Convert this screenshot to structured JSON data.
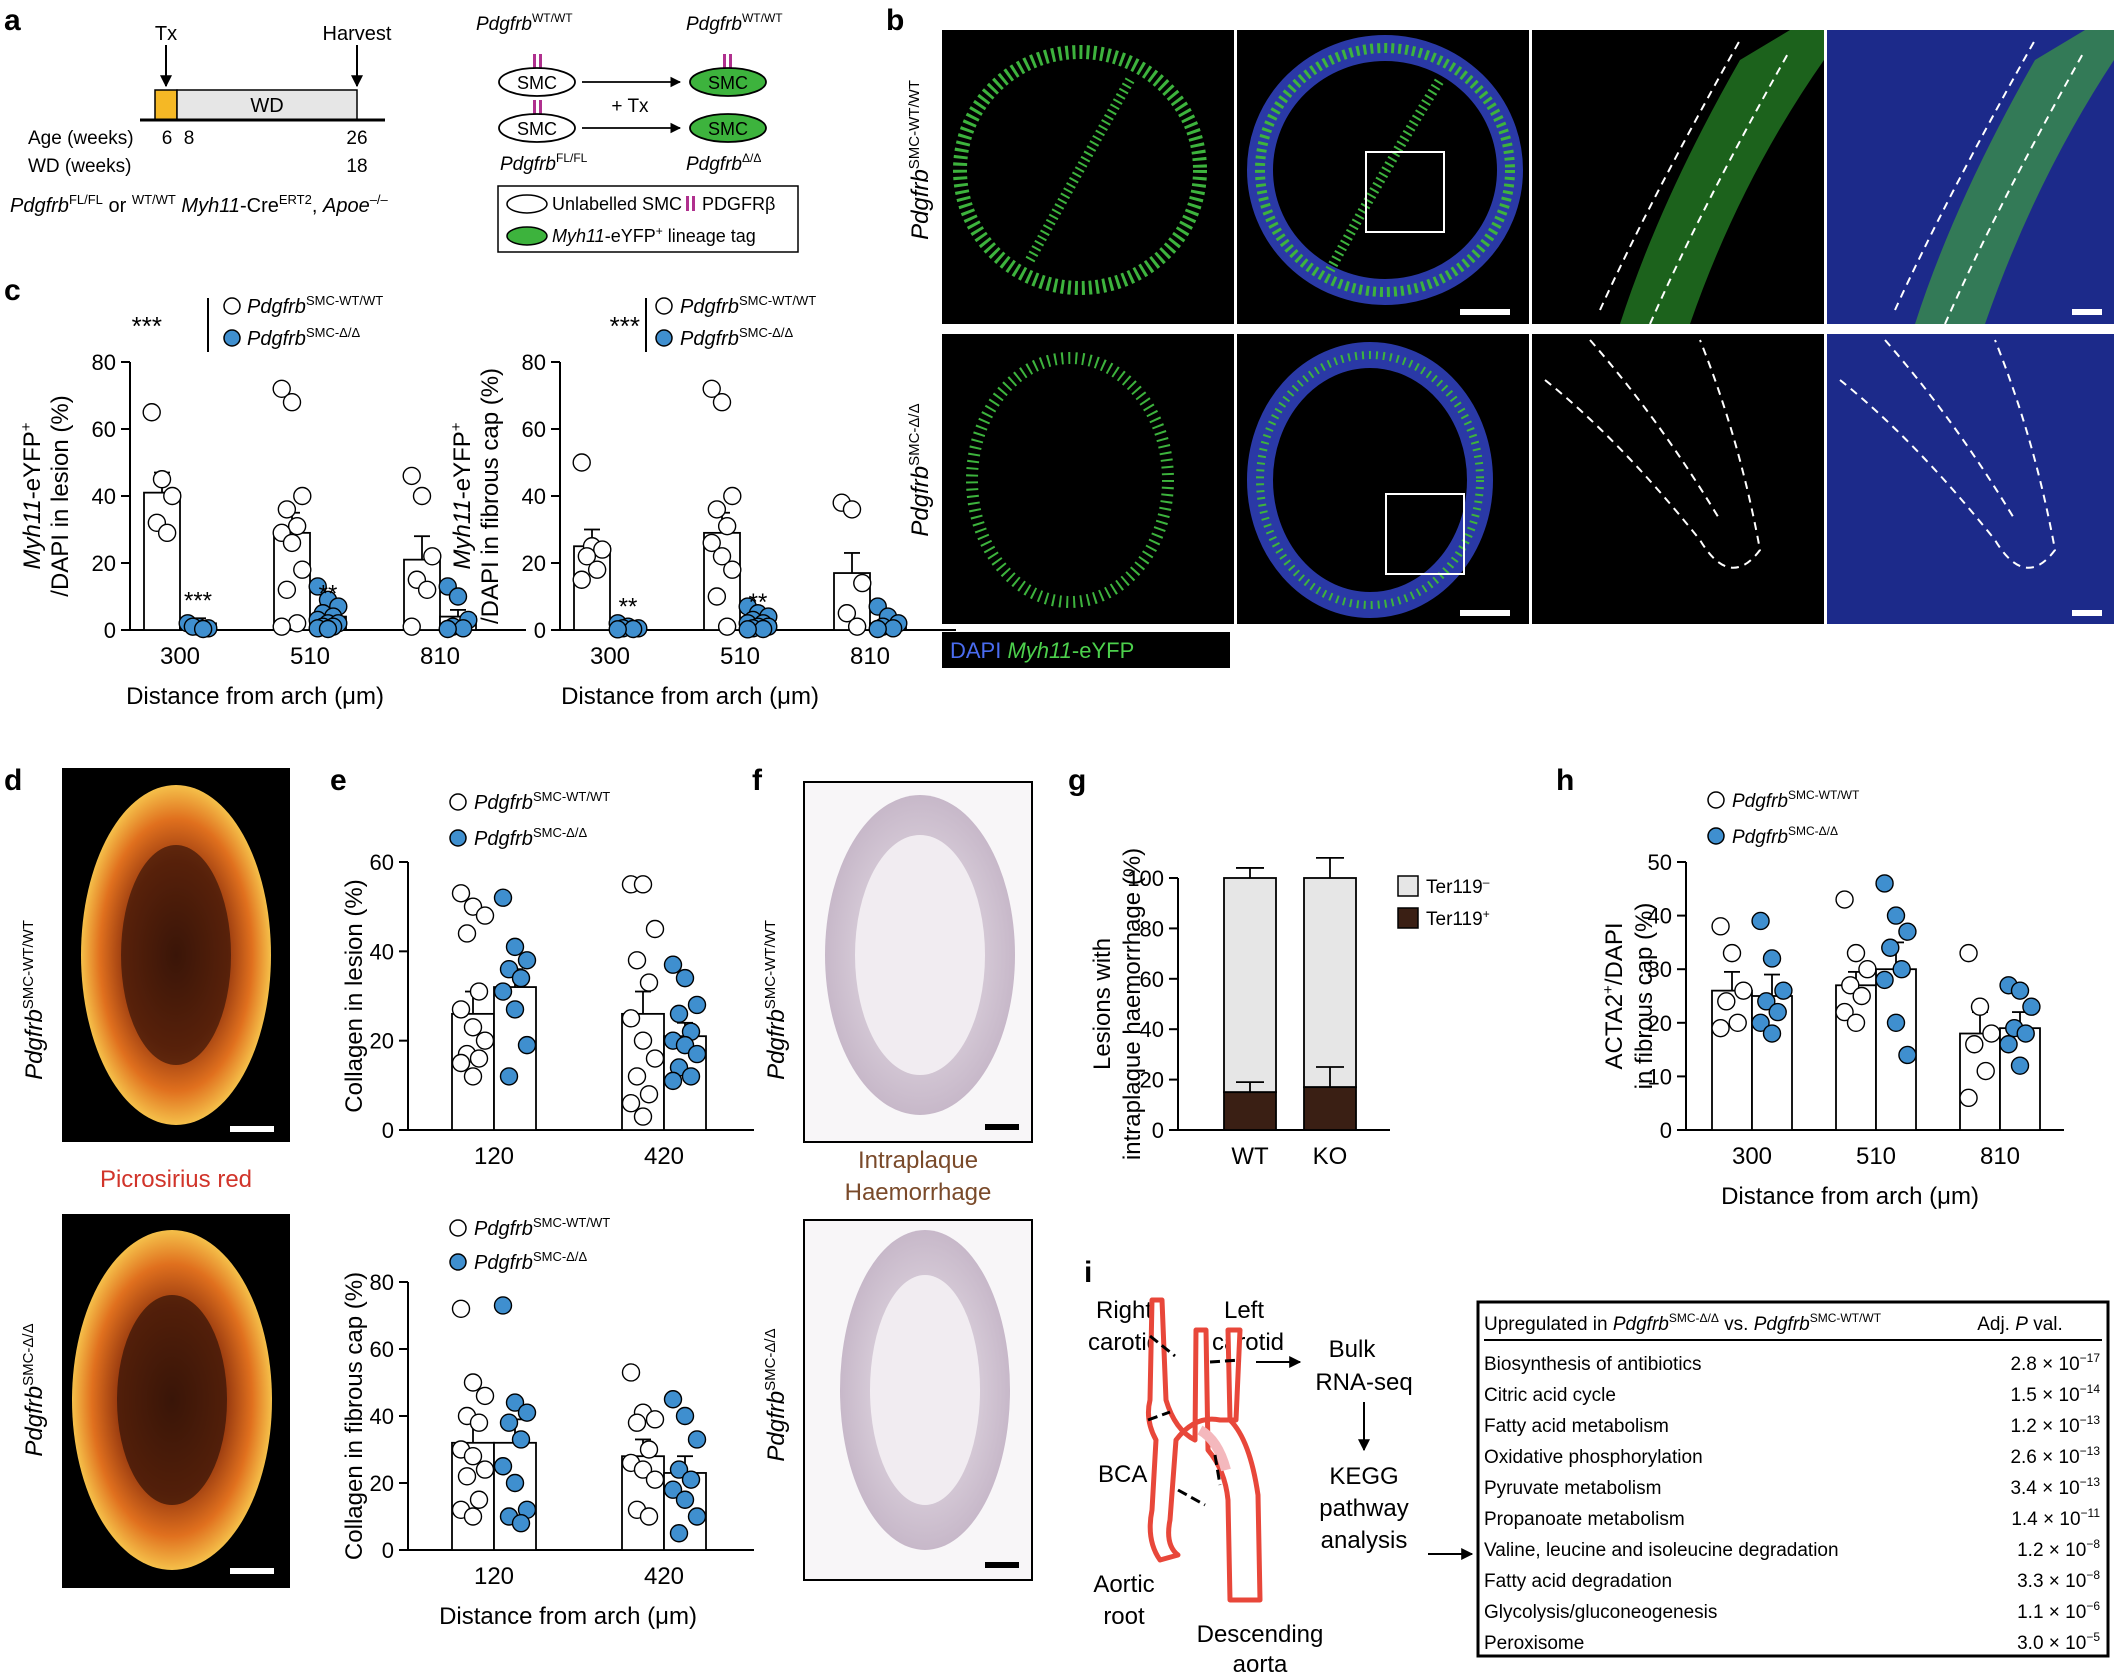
{
  "panels": {
    "a": "a",
    "b": "b",
    "c": "c",
    "d": "d",
    "e": "e",
    "f": "f",
    "g": "g",
    "h": "h",
    "i": "i"
  },
  "panel_a": {
    "tx": "Tx",
    "harvest": "Harvest",
    "wd": "WD",
    "age_label": "Age (weeks)",
    "wd_label": "WD (weeks)",
    "age_6": "6",
    "age_8": "8",
    "age_26": "26",
    "wd_18": "18",
    "genotype_pdgfrb": "Pdgfrb",
    "genotype_sup": "FL/FL",
    "genotype_or": " or ",
    "genotype_sup2": "WT/WT",
    "genotype_myh11": "Myh11",
    "genotype_cre": "-Cre",
    "genotype_ert2": "ERT2",
    "genotype_apoe": "Apoe",
    "genotype_apoe_sup": "–/–",
    "pdgfrb": "Pdgfrb",
    "wtwt": "WT/WT",
    "flfl": "FL/FL",
    "dd": "Δ/Δ",
    "smc": "SMC",
    "plus_tx": "+ Tx",
    "legend_unlabelled": "Unlabelled SMC",
    "legend_pdgfrb": "PDGFRβ",
    "legend_myh11": "Myh11",
    "legend_eyfp": "-eYFP",
    "legend_plus": "+",
    "legend_lineage": " lineage tag"
  },
  "colors": {
    "eyfp_green": "#3db33d",
    "knockout_blue": "#3f8fcf",
    "pdgfrb_magenta": "#b0308e",
    "tx_orange": "#f5b825",
    "wd_grey": "#e6e6e6",
    "aorta_red": "#e8473a",
    "micro_bg": "#000000",
    "micro_dapi": "#2f3fb8",
    "hem_brown": "#7a4a2a",
    "picrosirius_red": "#d1342a"
  },
  "common": {
    "label_wt_italic": "Pdgfrb",
    "label_wt_sup": "SMC-WT/WT",
    "label_ko_sup": "SMC-Δ/Δ",
    "sig_3": "***",
    "sig_2": "**",
    "distance_label": "Distance from arch (μm)"
  },
  "panel_b": {
    "row1_label_italic": "Pdgfrb",
    "row1_label_sup": "SMC-WT/WT",
    "row2_label_italic": "Pdgfrb",
    "row2_label_sup": "SMC-Δ/Δ",
    "legend_dapi": "DAPI",
    "legend_myh11": "Myh11",
    "legend_eyfp": "-eYFP"
  },
  "chart_data": [
    {
      "id": "c1",
      "type": "bar",
      "ylabel_italic": "Myh11",
      "ylabel_1": "-eYFP",
      "ylabel_sup": "+",
      "ylabel_2": "/DAPI in lesion (%)",
      "xlabel": "Distance from arch (μm)",
      "categories": [
        "300",
        "510",
        "810"
      ],
      "ylim": [
        0,
        80
      ],
      "yticks": [
        0,
        20,
        40,
        60,
        80
      ],
      "series": [
        {
          "name": "Pdgfrb SMC-WT/WT",
          "values": [
            41,
            29,
            21
          ],
          "sem": [
            6,
            6,
            7
          ]
        },
        {
          "name": "Pdgfrb SMC-Δ/Δ",
          "values": [
            2,
            4,
            4
          ],
          "sem": [
            1.5,
            1.5,
            2
          ]
        }
      ],
      "points": [
        [
          [
            65,
            45,
            40,
            32,
            29
          ],
          [
            2,
            1,
            0.5,
            1,
            0.3
          ]
        ],
        [
          [
            72,
            68,
            40,
            36,
            31,
            29,
            26,
            18,
            12,
            2,
            1
          ],
          [
            13,
            9,
            7,
            5,
            4,
            3,
            2,
            2,
            1,
            1,
            0.5,
            0.3
          ]
        ],
        [
          [
            46,
            40,
            22,
            15,
            12,
            1
          ],
          [
            13,
            10,
            3,
            1,
            0.5,
            0.3
          ]
        ]
      ],
      "sig_overall": "***",
      "sig": [
        "***",
        "**",
        ""
      ]
    },
    {
      "id": "c2",
      "type": "bar",
      "ylabel_italic": "Myh11",
      "ylabel_1": "-eYFP",
      "ylabel_sup": "+",
      "ylabel_2": "/DAPI in fibrous cap (%)",
      "xlabel": "Distance from arch (μm)",
      "categories": [
        "300",
        "510",
        "810"
      ],
      "ylim": [
        0,
        80
      ],
      "yticks": [
        0,
        20,
        40,
        60,
        80
      ],
      "series": [
        {
          "name": "Pdgfrb SMC-WT/WT",
          "values": [
            25,
            29,
            17
          ],
          "sem": [
            5,
            6,
            6
          ]
        },
        {
          "name": "Pdgfrb SMC-Δ/Δ",
          "values": [
            1,
            2,
            2
          ],
          "sem": [
            0.6,
            1,
            1
          ]
        }
      ],
      "points": [
        [
          [
            50,
            25,
            24,
            22,
            18,
            15
          ],
          [
            2,
            1,
            0.5,
            0.5,
            0.3,
            0.2
          ]
        ],
        [
          [
            72,
            68,
            40,
            36,
            31,
            26,
            22,
            18,
            10,
            1
          ],
          [
            7,
            5,
            4,
            3,
            2,
            2,
            1,
            1,
            0.5,
            0.3,
            0.2
          ]
        ],
        [
          [
            38,
            36,
            14,
            5,
            1
          ],
          [
            7,
            4,
            2,
            1,
            0.5,
            0.3
          ]
        ]
      ],
      "sig_overall": "***",
      "sig": [
        "**",
        "**",
        ""
      ]
    },
    {
      "id": "e1",
      "type": "bar",
      "ylabel": "Collagen in lesion (%)",
      "categories": [
        "120",
        "420"
      ],
      "ylim": [
        0,
        60
      ],
      "yticks": [
        0,
        20,
        40,
        60
      ],
      "series": [
        {
          "name": "Pdgfrb SMC-WT/WT",
          "values": [
            26,
            26
          ],
          "sem": [
            5,
            5
          ]
        },
        {
          "name": "Pdgfrb SMC-Δ/Δ",
          "values": [
            32,
            21
          ],
          "sem": [
            4,
            3
          ]
        }
      ],
      "points": [
        [
          [
            53,
            50,
            48,
            44,
            31,
            27,
            23,
            20,
            17,
            16,
            15,
            12
          ],
          [
            52,
            41,
            38,
            36,
            34,
            31,
            27,
            19,
            12
          ]
        ],
        [
          [
            55,
            55,
            45,
            38,
            33,
            25,
            20,
            16,
            12,
            8,
            6,
            3
          ],
          [
            37,
            34,
            28,
            26,
            22,
            20,
            19,
            17,
            14,
            12,
            11
          ]
        ]
      ]
    },
    {
      "id": "e2",
      "type": "bar",
      "ylabel": "Collagen in fibrous cap (%)",
      "xlabel": "Distance from arch (μm)",
      "categories": [
        "120",
        "420"
      ],
      "ylim": [
        0,
        80
      ],
      "yticks": [
        0,
        20,
        40,
        60,
        80
      ],
      "series": [
        {
          "name": "Pdgfrb SMC-WT/WT",
          "values": [
            32,
            28
          ],
          "sem": [
            6,
            5
          ]
        },
        {
          "name": "Pdgfrb SMC-Δ/Δ",
          "values": [
            32,
            23
          ],
          "sem": [
            7,
            5
          ]
        }
      ],
      "points": [
        [
          [
            72,
            50,
            46,
            40,
            38,
            30,
            28,
            24,
            22,
            15,
            12,
            10
          ],
          [
            73,
            44,
            41,
            38,
            33,
            25,
            20,
            12,
            10,
            8
          ]
        ],
        [
          [
            53,
            41,
            39,
            38,
            30,
            26,
            24,
            21,
            12,
            10
          ],
          [
            45,
            40,
            33,
            24,
            21,
            18,
            15,
            10,
            5
          ]
        ]
      ]
    },
    {
      "id": "g",
      "type": "stacked-bar",
      "ylabel_1": "Lesions with",
      "ylabel_2": "intraplaque haemorrhage (%)",
      "categories": [
        "WT",
        "KO"
      ],
      "ylim": [
        0,
        100
      ],
      "yticks": [
        0,
        20,
        40,
        60,
        80,
        100
      ],
      "series": [
        {
          "name": "Ter119",
          "sup": "–",
          "values": [
            85,
            83
          ],
          "sem": [
            4,
            8
          ]
        },
        {
          "name": "Ter119",
          "sup": "+",
          "values": [
            15,
            17
          ],
          "sem": [
            4,
            8
          ]
        }
      ]
    },
    {
      "id": "h",
      "type": "bar",
      "ylabel_1": "ACTA2",
      "ylabel_sup": "+",
      "ylabel_2": "/DAPI",
      "ylabel_3": "in fibrous cap (%)",
      "xlabel": "Distance from arch (μm)",
      "categories": [
        "300",
        "510",
        "810"
      ],
      "ylim": [
        0,
        50
      ],
      "yticks": [
        0,
        10,
        20,
        30,
        40,
        50
      ],
      "series": [
        {
          "name": "Pdgfrb SMC-WT/WT",
          "values": [
            26,
            27,
            18
          ],
          "sem": [
            3.5,
            2.5,
            4
          ]
        },
        {
          "name": "Pdgfrb SMC-Δ/Δ",
          "values": [
            25,
            30,
            19
          ],
          "sem": [
            4,
            5,
            3
          ]
        }
      ],
      "points": [
        [
          [
            38,
            33,
            26,
            24,
            20,
            19
          ],
          [
            39,
            32,
            26,
            24,
            22,
            20,
            18
          ]
        ],
        [
          [
            43,
            33,
            30,
            27,
            25,
            22,
            20
          ],
          [
            46,
            40,
            37,
            34,
            30,
            28,
            20,
            14
          ]
        ],
        [
          [
            33,
            23,
            18,
            16,
            11,
            6
          ],
          [
            27,
            26,
            23,
            19,
            18,
            16,
            12
          ]
        ]
      ]
    }
  ],
  "panel_d": {
    "label_italic": "Pdgfrb",
    "sup_wt": "SMC-WT/WT",
    "sup_ko": "SMC-Δ/Δ",
    "stain": "Picrosirius red"
  },
  "panel_f": {
    "label_italic": "Pdgfrb",
    "sup_wt": "SMC-WT/WT",
    "sup_ko": "SMC-Δ/Δ",
    "stain_1": "Intraplaque",
    "stain_2": "Haemorrhage"
  },
  "panel_i": {
    "right_carotid_1": "Right",
    "right_carotid_2": "carotid",
    "left_carotid_1": "Left",
    "left_carotid_2": "carotid",
    "bca": "BCA",
    "aortic_root_1": "Aortic",
    "aortic_root_2": "root",
    "descending_1": "Descending",
    "descending_2": "aorta",
    "bulk_1": "Bulk",
    "bulk_2": "RNA-seq",
    "kegg_1": "KEGG",
    "kegg_2": "pathway",
    "kegg_3": "analysis",
    "table": {
      "header_prefix": "Upregulated in ",
      "header_pdgfrb": "Pdgfrb",
      "header_sup_ko": "SMC-Δ/Δ",
      "header_vs": " vs. ",
      "header_sup_wt": "SMC-WT/WT",
      "header_pval_1": "Adj. ",
      "header_pval_p": "P",
      "header_pval_2": " val.",
      "rows": [
        {
          "pathway": "Biosynthesis of antibiotics",
          "mant": "2.8 × 10",
          "exp": "−17"
        },
        {
          "pathway": "Citric acid cycle",
          "mant": "1.5 × 10",
          "exp": "−14"
        },
        {
          "pathway": "Fatty acid metabolism",
          "mant": "1.2 × 10",
          "exp": "−13"
        },
        {
          "pathway": "Oxidative phosphorylation",
          "mant": "2.6 × 10",
          "exp": "−13"
        },
        {
          "pathway": "Pyruvate metabolism",
          "mant": "3.4 × 10",
          "exp": "−13"
        },
        {
          "pathway": "Propanoate metabolism",
          "mant": "1.4 × 10",
          "exp": "−11"
        },
        {
          "pathway": "Valine, leucine and isoleucine degradation",
          "mant": "1.2 × 10",
          "exp": "−8"
        },
        {
          "pathway": "Fatty acid degradation",
          "mant": "3.3 × 10",
          "exp": "−8"
        },
        {
          "pathway": "Glycolysis/gluconeogenesis",
          "mant": "1.1 × 10",
          "exp": "−6"
        },
        {
          "pathway": "Peroxisome",
          "mant": "3.0 × 10",
          "exp": "−5"
        }
      ]
    }
  }
}
